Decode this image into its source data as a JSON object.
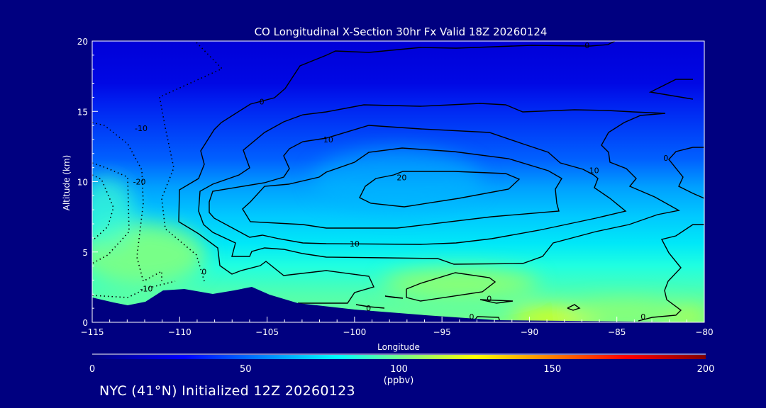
{
  "chart_data": {
    "type": "heatmap",
    "title": "CO Longitudinal X-Section 30hr  Fx Valid 18Z 20260124",
    "xlabel": "Longitude",
    "ylabel": "Altitude (km)",
    "xlim": [
      -115,
      -80
    ],
    "ylim": [
      0,
      20
    ],
    "x_ticks": [
      "-115",
      "-110",
      "-105",
      "-100",
      "-95",
      "-90",
      "-85",
      "-80"
    ],
    "x_tick_values": [
      -115,
      -110,
      -105,
      -100,
      -95,
      -90,
      -85,
      -80
    ],
    "y_ticks": [
      "0",
      "5",
      "10",
      "15",
      "20"
    ],
    "y_tick_values": [
      0,
      5,
      10,
      15,
      20
    ],
    "colorbar": {
      "label": "(ppbv)",
      "range": [
        0,
        200
      ],
      "ticks": [
        "0",
        "50",
        "100",
        "150",
        "200"
      ],
      "tick_values": [
        0,
        50,
        100,
        150,
        200
      ],
      "colors": [
        "#000080",
        "#0000ff",
        "#00ffff",
        "#ffff00",
        "#ff0000",
        "#800000"
      ]
    },
    "contour_levels_labeled": [
      "0",
      "10",
      "20",
      "-10",
      "-20"
    ],
    "contour_labels": [
      {
        "text": "0",
        "lon": -86.7,
        "alt": 19.7
      },
      {
        "text": "0",
        "lon": -105.3,
        "alt": 15.7
      },
      {
        "text": "10",
        "lon": -101.5,
        "alt": 13.0
      },
      {
        "text": "20",
        "lon": -97.3,
        "alt": 10.3
      },
      {
        "text": "10",
        "lon": -86.3,
        "alt": 10.8
      },
      {
        "text": "10",
        "lon": -100.0,
        "alt": 5.6
      },
      {
        "text": "0",
        "lon": -108.6,
        "alt": 3.6
      },
      {
        "text": "-10",
        "lon": -112.2,
        "alt": 13.8
      },
      {
        "text": "-20",
        "lon": -112.3,
        "alt": 10.0
      },
      {
        "text": "-10",
        "lon": -111.9,
        "alt": 2.4
      },
      {
        "text": "0",
        "lon": -82.2,
        "alt": 11.7
      },
      {
        "text": "0",
        "lon": -92.3,
        "alt": 1.7
      },
      {
        "text": "0",
        "lon": -99.2,
        "alt": 1.0
      },
      {
        "text": "0",
        "lon": -93.3,
        "alt": 0.4
      },
      {
        "text": "0",
        "lon": -83.5,
        "alt": 0.4
      }
    ]
  },
  "footer": {
    "subtitle": "NYC (41°N) Initialized 12Z 20260123"
  }
}
